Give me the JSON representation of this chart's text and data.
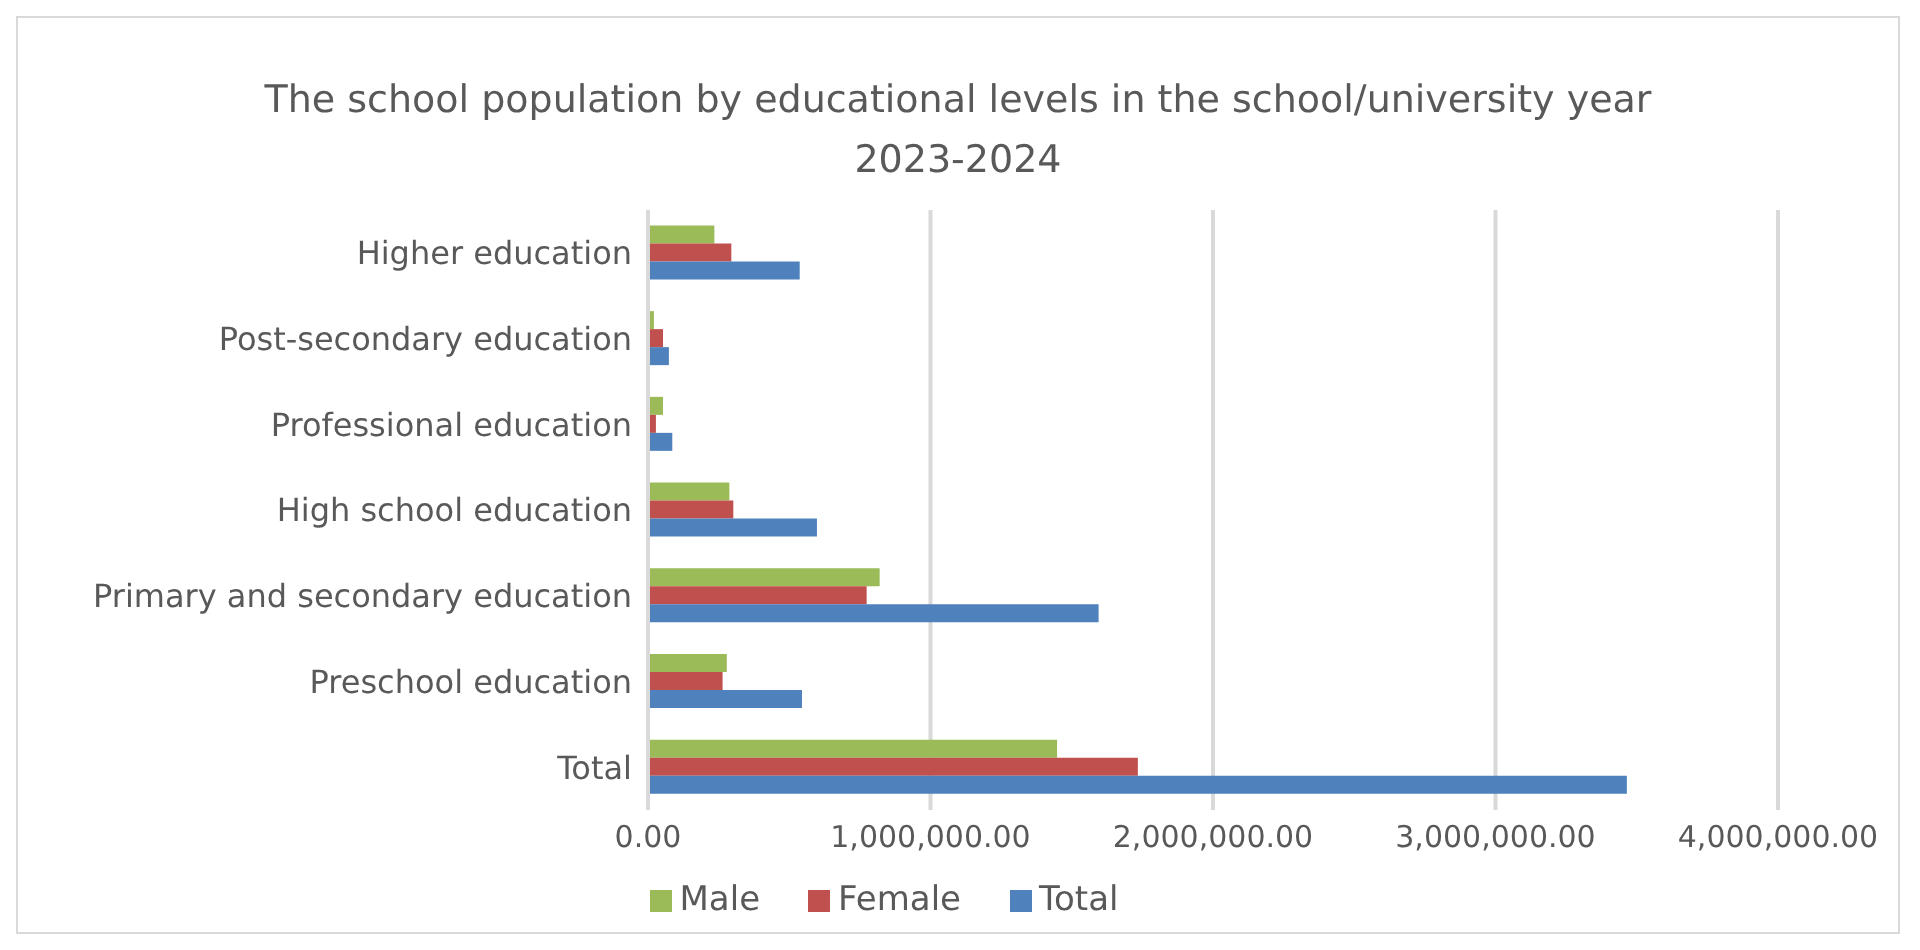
{
  "chart_data": {
    "type": "bar",
    "orientation": "horizontal",
    "title": "The school population by educational levels in the school/university year 2023-2024",
    "categories": [
      "Higher education",
      "Post-secondary education",
      "Professional education",
      "High school education",
      "Primary and secondary education",
      "Preschool education",
      "Total"
    ],
    "series": [
      {
        "name": "Male",
        "color": "#9bbb59",
        "values": [
          235000,
          21000,
          53000,
          288000,
          820000,
          279000,
          1448000
        ]
      },
      {
        "name": "Female",
        "color": "#c0504d",
        "values": [
          295000,
          53000,
          28000,
          302000,
          774000,
          264000,
          1734000
        ]
      },
      {
        "name": "Total",
        "color": "#4f81bd",
        "values": [
          537000,
          74000,
          86000,
          598000,
          1595000,
          545000,
          3465000
        ]
      }
    ],
    "xlim": [
      0,
      4000000
    ],
    "xticks": [
      {
        "value": 0,
        "label": "0.00"
      },
      {
        "value": 1000000,
        "label": "1,000,000.00"
      },
      {
        "value": 2000000,
        "label": "2,000,000.00"
      },
      {
        "value": 3000000,
        "label": "3,000,000.00"
      },
      {
        "value": 4000000,
        "label": "4,000,000.00"
      }
    ],
    "grid": "x",
    "legend": "bottom"
  }
}
